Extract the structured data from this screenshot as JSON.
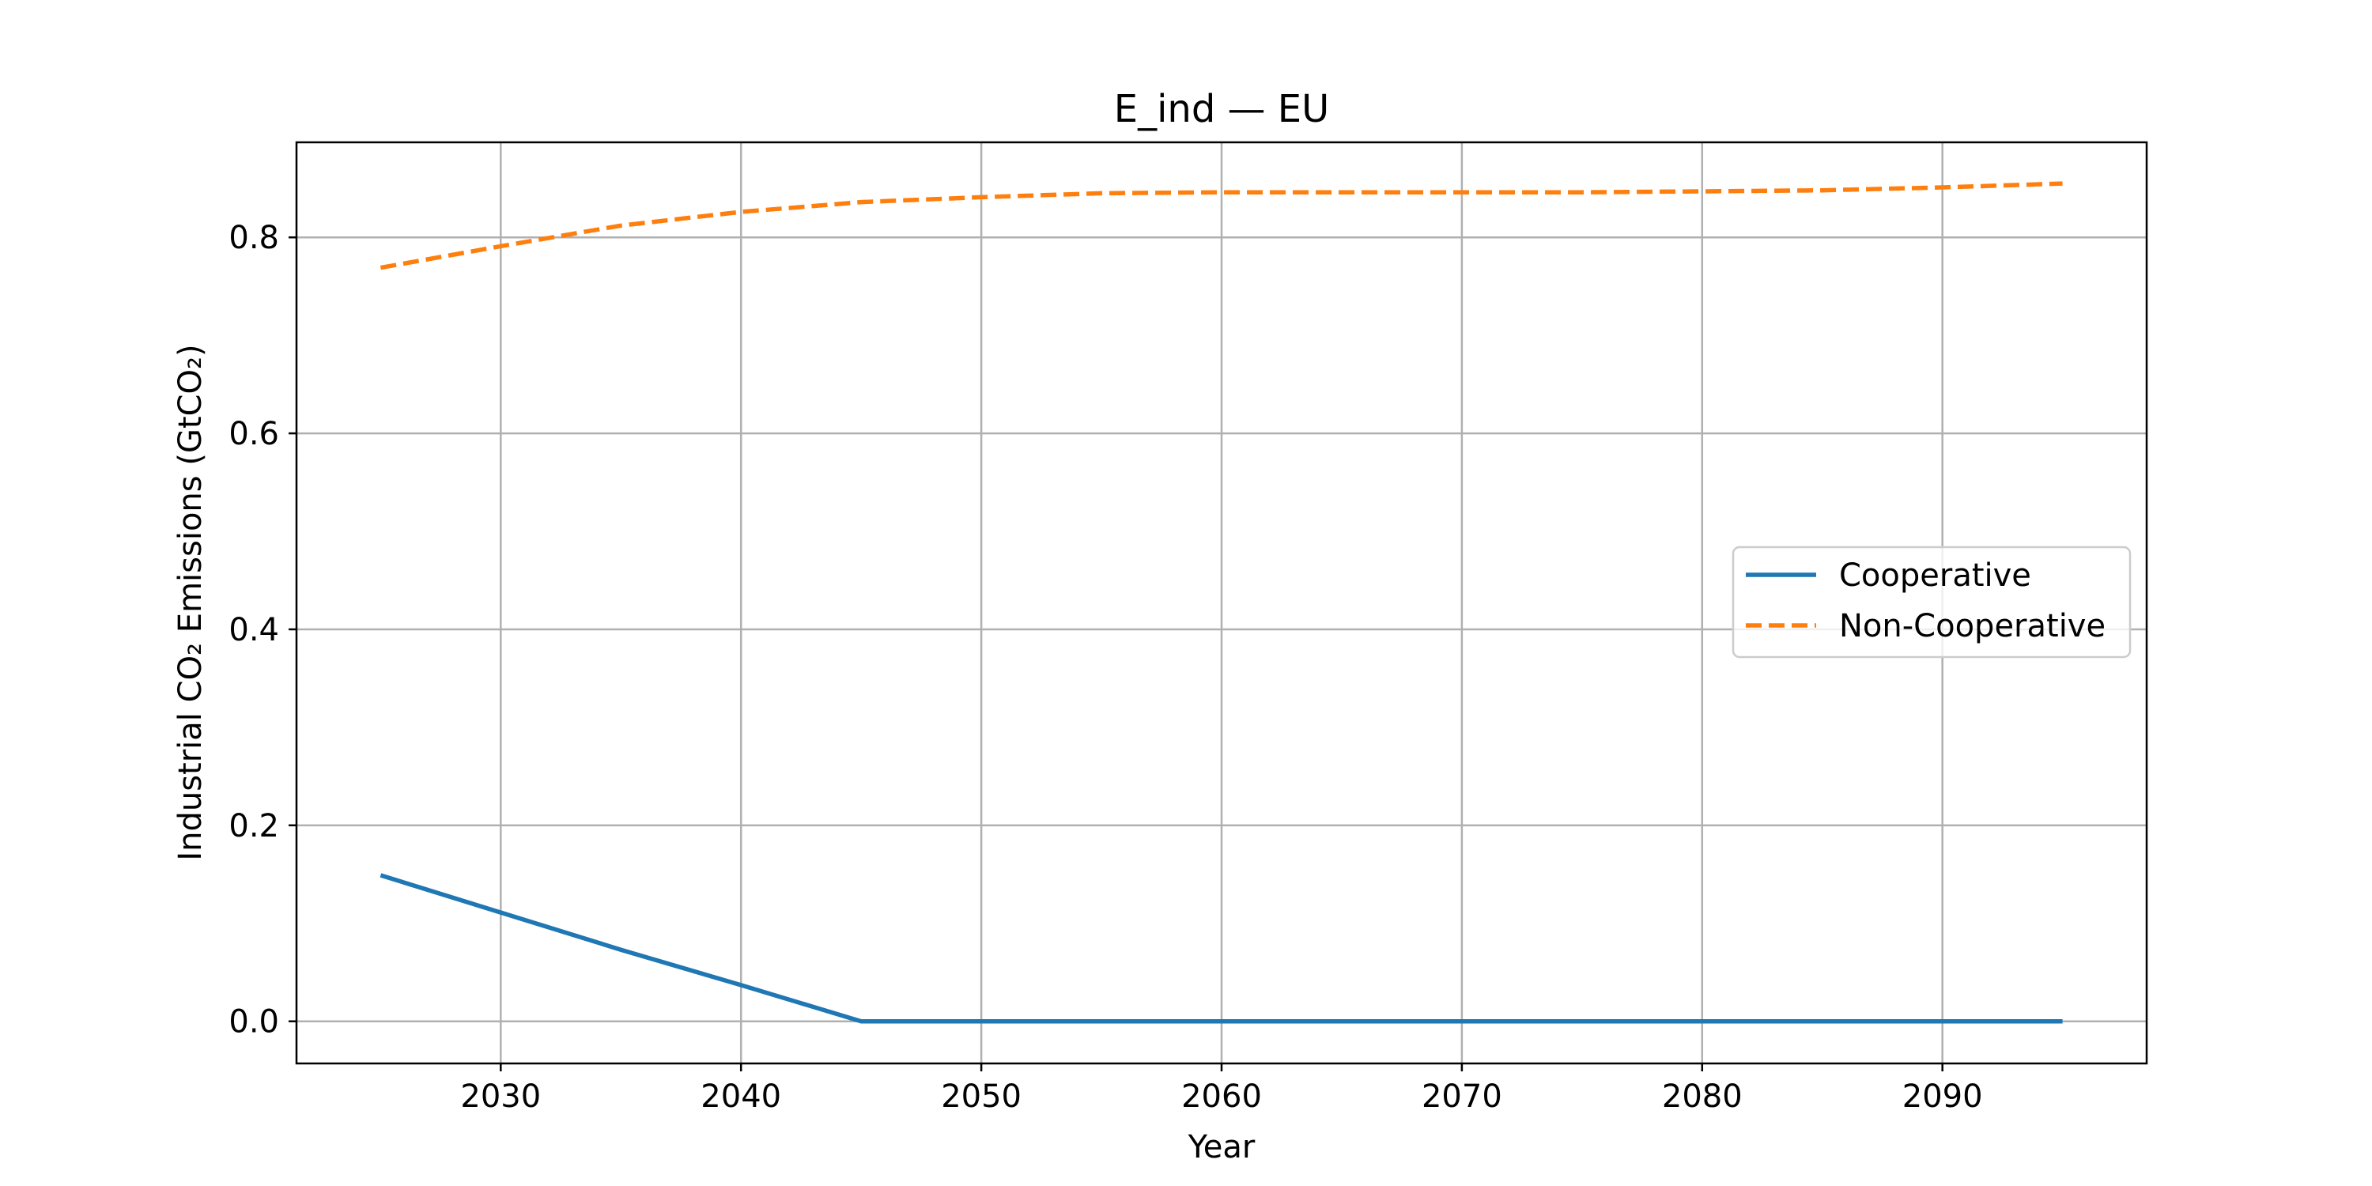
{
  "chart_data": {
    "type": "line",
    "title": "E_ind — EU",
    "xlabel": "Year",
    "ylabel": "Industrial CO₂ Emissions (GtCO₂)",
    "xlim": [
      2021.5,
      2098.5
    ],
    "ylim": [
      -0.043,
      0.897
    ],
    "xticks": [
      2030,
      2040,
      2050,
      2060,
      2070,
      2080,
      2090
    ],
    "yticks": [
      0.0,
      0.2,
      0.4,
      0.6,
      0.8
    ],
    "ytick_labels": [
      "0.0",
      "0.2",
      "0.4",
      "0.6",
      "0.8"
    ],
    "grid": true,
    "legend_position": "center-right",
    "x": [
      2025,
      2030,
      2035,
      2040,
      2045,
      2050,
      2055,
      2060,
      2065,
      2070,
      2075,
      2080,
      2085,
      2090,
      2095
    ],
    "series": [
      {
        "name": "Cooperative",
        "color": "#1f77b4",
        "style": "solid",
        "values": [
          0.149,
          0.111,
          0.073,
          0.037,
          0.0,
          0.0,
          0.0,
          0.0,
          0.0,
          0.0,
          0.0,
          0.0,
          0.0,
          0.0,
          0.0
        ]
      },
      {
        "name": "Non-Cooperative",
        "color": "#ff7f0e",
        "style": "dashed",
        "values": [
          0.769,
          0.791,
          0.812,
          0.826,
          0.836,
          0.841,
          0.845,
          0.846,
          0.846,
          0.846,
          0.846,
          0.847,
          0.848,
          0.851,
          0.855
        ]
      }
    ]
  }
}
